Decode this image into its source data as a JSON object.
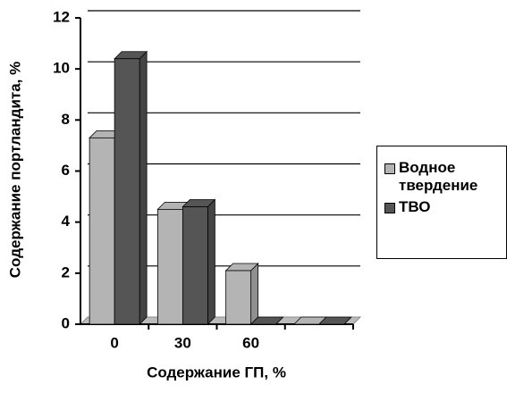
{
  "chart_data": {
    "type": "bar",
    "y_label": "Содержание портландита, %",
    "x_label": "Содержание ГП, %",
    "categories": [
      "0",
      "30",
      "60",
      null
    ],
    "series": [
      {
        "name": "Водное твердение",
        "color": "#b4b4b4",
        "values": [
          7.3,
          4.5,
          2.1,
          0
        ]
      },
      {
        "name": "ТВО",
        "color": "#555555",
        "values": [
          10.4,
          4.6,
          0,
          0
        ]
      }
    ],
    "ylim": [
      0,
      12
    ],
    "yticks": [
      0,
      2,
      4,
      6,
      8,
      10,
      12
    ],
    "grid": true,
    "legend": "right"
  }
}
